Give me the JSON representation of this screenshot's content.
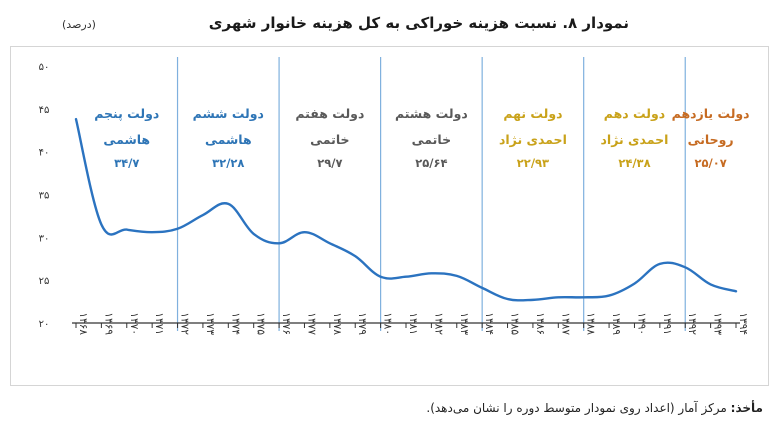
{
  "title": "نمودار ۸. نسبت هزینه خوراکی به کل هزینه خانوار شهری",
  "unit": "(درصد)",
  "source": {
    "label": "مأخذ:",
    "text": "مرکز آمار (اعداد روی نمودار متوسط دوره را نشان می‌دهد)."
  },
  "colors": {
    "line": "#2b73c0",
    "divider": "#7fb0de",
    "grid": "#d0d0d0",
    "axis": "#333333",
    "label_blue": "#2e75b6",
    "label_gray": "#595959",
    "label_gold": "#c9a21a",
    "label_orange": "#c66b22"
  },
  "chart_data": {
    "type": "line",
    "ylim": [
      20,
      50
    ],
    "yticks": [
      "۲۰",
      "۲۵",
      "۳۰",
      "۳۵",
      "۴۰",
      "۴۵",
      "۵۰"
    ],
    "ytick_values": [
      20,
      25,
      30,
      35,
      40,
      45,
      50
    ],
    "x_labels": [
      "۱۳۶۸",
      "۱۳۶۹",
      "۱۳۷۰",
      "۱۳۷۱",
      "۱۳۷۲",
      "۱۳۷۳",
      "۱۳۷۴",
      "۱۳۷۵",
      "۱۳۷۶",
      "۱۳۷۷",
      "۱۳۷۸",
      "۱۳۷۹",
      "۱۳۸۰",
      "۱۳۸۱",
      "۱۳۸۲",
      "۱۳۸۳",
      "۱۳۸۴",
      "۱۳۸۵",
      "۱۳۸۶",
      "۱۳۸۷",
      "۱۳۸۸",
      "۱۳۸۹",
      "۱۳۹۰",
      "۱۳۹۱",
      "۱۳۹۲",
      "۱۳۹۳",
      "۱۳۹۴"
    ],
    "x": [
      1368,
      1369,
      1370,
      1371,
      1372,
      1373,
      1374,
      1375,
      1376,
      1377,
      1378,
      1379,
      1380,
      1381,
      1382,
      1383,
      1384,
      1385,
      1386,
      1387,
      1388,
      1389,
      1390,
      1391,
      1392,
      1393,
      1394
    ],
    "values": [
      43.8,
      31.5,
      30.9,
      30.6,
      31.0,
      32.6,
      33.9,
      30.4,
      29.3,
      30.6,
      29.3,
      27.8,
      25.4,
      25.4,
      25.8,
      25.5,
      24.1,
      22.8,
      22.7,
      23.0,
      23.0,
      23.2,
      24.6,
      26.9,
      26.5,
      24.5,
      23.7
    ],
    "dividers": [
      1372,
      1376,
      1380,
      1384,
      1388,
      1392
    ],
    "grid": false,
    "periods": [
      {
        "name": "دولت پنجم",
        "sub": "هاشمی",
        "avg": "۳۴/۷",
        "center": 1370,
        "color_key": "label_blue"
      },
      {
        "name": "دولت ششم",
        "sub": "هاشمی",
        "avg": "۳۲/۲۸",
        "center": 1374,
        "color_key": "label_blue"
      },
      {
        "name": "دولت هفتم",
        "sub": "خاتمی",
        "avg": "۲۹/۷",
        "center": 1378,
        "color_key": "label_gray"
      },
      {
        "name": "دولت هشتم",
        "sub": "خاتمی",
        "avg": "۲۵/۶۴",
        "center": 1382,
        "color_key": "label_gray"
      },
      {
        "name": "دولت نهم",
        "sub": "احمدی نژاد",
        "avg": "۲۲/۹۳",
        "center": 1386,
        "color_key": "label_gold"
      },
      {
        "name": "دولت دهم",
        "sub": "احمدی نژاد",
        "avg": "۲۴/۳۸",
        "center": 1390,
        "color_key": "label_gold"
      },
      {
        "name": "دولت یازدهم",
        "sub": "روحانی",
        "avg": "۲۵/۰۷",
        "center": 1393,
        "color_key": "label_orange"
      }
    ]
  }
}
